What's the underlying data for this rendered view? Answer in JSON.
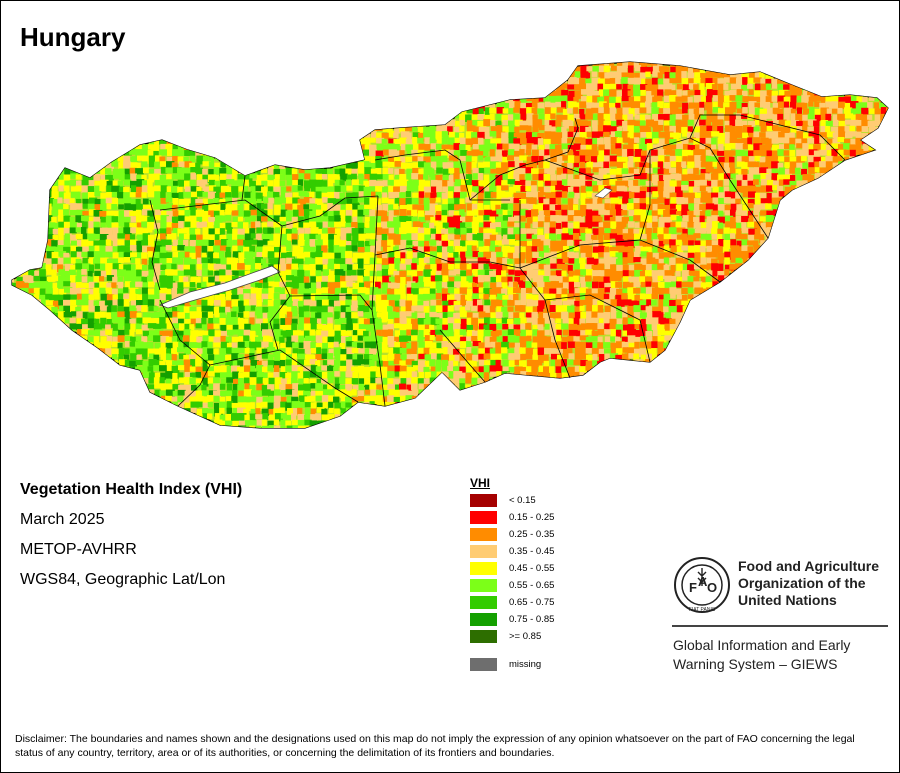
{
  "map": {
    "title": "Hungary",
    "country": "Hungary"
  },
  "info": {
    "index_name": "Vegetation Health Index (VHI)",
    "period": "March 2025",
    "sensor": "METOP-AVHRR",
    "projection": "WGS84, Geographic Lat/Lon"
  },
  "legend": {
    "title": "VHI",
    "classes": [
      {
        "label": "< 0.15",
        "color": "#a50000"
      },
      {
        "label": "0.15 - 0.25",
        "color": "#ff0000"
      },
      {
        "label": "0.25 - 0.35",
        "color": "#ff8c00"
      },
      {
        "label": "0.35 - 0.45",
        "color": "#ffcc73"
      },
      {
        "label": "0.45 - 0.55",
        "color": "#ffff00"
      },
      {
        "label": "0.55 - 0.65",
        "color": "#7cff18"
      },
      {
        "label": "0.65 - 0.75",
        "color": "#33cc00"
      },
      {
        "label": "0.75 - 0.85",
        "color": "#14a000"
      },
      {
        "label": ">= 0.85",
        "color": "#2d6e00"
      }
    ],
    "missing": {
      "label": "missing",
      "color": "#6e6e6e"
    }
  },
  "organization": {
    "name_lines": [
      "Food and Agriculture",
      "Organization of the",
      "United Nations"
    ],
    "logo_text": "FIAT PANIS",
    "system_lines": [
      "Global Information and Early",
      "Warning System – GIEWS"
    ]
  },
  "disclaimer": "Disclaimer: The boundaries and names shown and the designations used on this map do not imply the expression of any opinion whatsoever on the part of FAO concerning the legal status of any country, territory, area or of its authorities, or concerning the delimitation of its frontiers and boundaries."
}
